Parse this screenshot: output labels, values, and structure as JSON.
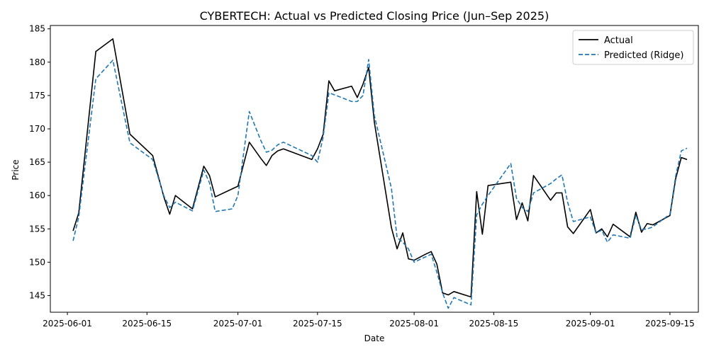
{
  "chart_data": {
    "type": "line",
    "title": "CYBERTECH: Actual vs Predicted Closing Price (Jun–Sep 2025)",
    "xlabel": "Date",
    "ylabel": "Price",
    "xlim": [
      "2025-05-29",
      "2025-09-20"
    ],
    "ylim": [
      142.5,
      185.5
    ],
    "x_ticks": [
      "2025-06-01",
      "2025-06-15",
      "2025-07-01",
      "2025-07-15",
      "2025-08-01",
      "2025-08-15",
      "2025-09-01",
      "2025-09-15"
    ],
    "y_ticks": [
      145,
      150,
      155,
      160,
      165,
      170,
      175,
      180,
      185
    ],
    "legend_position": "top-right",
    "grid": false,
    "x": [
      "2025-06-02",
      "2025-06-03",
      "2025-06-06",
      "2025-06-09",
      "2025-06-12",
      "2025-06-16",
      "2025-06-18",
      "2025-06-19",
      "2025-06-20",
      "2025-06-23",
      "2025-06-25",
      "2025-06-26",
      "2025-06-27",
      "2025-06-30",
      "2025-07-01",
      "2025-07-03",
      "2025-07-05",
      "2025-07-06",
      "2025-07-07",
      "2025-07-08",
      "2025-07-09",
      "2025-07-14",
      "2025-07-15",
      "2025-07-16",
      "2025-07-17",
      "2025-07-18",
      "2025-07-21",
      "2025-07-22",
      "2025-07-23",
      "2025-07-24",
      "2025-07-25",
      "2025-07-28",
      "2025-07-29",
      "2025-07-30",
      "2025-07-31",
      "2025-08-01",
      "2025-08-03",
      "2025-08-04",
      "2025-08-05",
      "2025-08-06",
      "2025-08-07",
      "2025-08-08",
      "2025-08-11",
      "2025-08-12",
      "2025-08-13",
      "2025-08-14",
      "2025-08-18",
      "2025-08-19",
      "2025-08-20",
      "2025-08-21",
      "2025-08-22",
      "2025-08-25",
      "2025-08-26",
      "2025-08-27",
      "2025-08-28",
      "2025-08-29",
      "2025-09-01",
      "2025-09-02",
      "2025-09-03",
      "2025-09-04",
      "2025-09-05",
      "2025-09-08",
      "2025-09-09",
      "2025-09-10",
      "2025-09-11",
      "2025-09-12",
      "2025-09-15",
      "2025-09-16",
      "2025-09-17",
      "2025-09-18"
    ],
    "series": [
      {
        "name": "Actual",
        "color": "#000000",
        "style": "solid",
        "values": [
          154.7,
          157.4,
          181.6,
          183.5,
          169.2,
          166.0,
          159.7,
          157.2,
          160.0,
          158.0,
          164.4,
          163.0,
          159.8,
          161.0,
          161.4,
          168.0,
          165.6,
          164.5,
          166.0,
          166.7,
          167.0,
          165.4,
          167.0,
          169.2,
          177.2,
          175.7,
          176.4,
          174.7,
          176.7,
          179.2,
          171.0,
          155.2,
          152.0,
          154.4,
          150.5,
          150.3,
          151.2,
          151.6,
          149.7,
          145.4,
          145.1,
          145.6,
          144.8,
          160.6,
          154.2,
          161.5,
          162.0,
          156.4,
          158.9,
          156.2,
          163.0,
          159.3,
          160.4,
          160.4,
          155.3,
          154.3,
          157.9,
          154.4,
          155.0,
          153.8,
          155.7,
          153.8,
          157.5,
          154.5,
          155.8,
          155.6,
          157.0,
          162.5,
          165.7,
          165.4
        ]
      },
      {
        "name": "Predicted (Ridge)",
        "color": "#1f77b4",
        "style": "dashed",
        "values": [
          153.2,
          156.8,
          177.5,
          180.3,
          167.9,
          165.4,
          159.9,
          158.2,
          159.0,
          157.7,
          163.8,
          161.9,
          157.6,
          158.0,
          160.0,
          172.6,
          168.3,
          166.5,
          166.8,
          167.6,
          168.0,
          166.0,
          165.0,
          168.8,
          175.4,
          175.1,
          174.1,
          174.1,
          175.0,
          180.4,
          172.0,
          161.1,
          153.7,
          153.0,
          152.0,
          150.0,
          150.8,
          151.2,
          148.5,
          145.4,
          143.1,
          144.7,
          143.6,
          157.1,
          158.7,
          160.0,
          164.8,
          159.6,
          158.2,
          157.6,
          160.4,
          161.8,
          162.5,
          163.1,
          159.0,
          156.1,
          156.8,
          154.4,
          154.8,
          153.0,
          154.1,
          153.6,
          157.0,
          154.9,
          155.0,
          155.3,
          157.2,
          162.9,
          166.7,
          167.1
        ]
      }
    ]
  }
}
